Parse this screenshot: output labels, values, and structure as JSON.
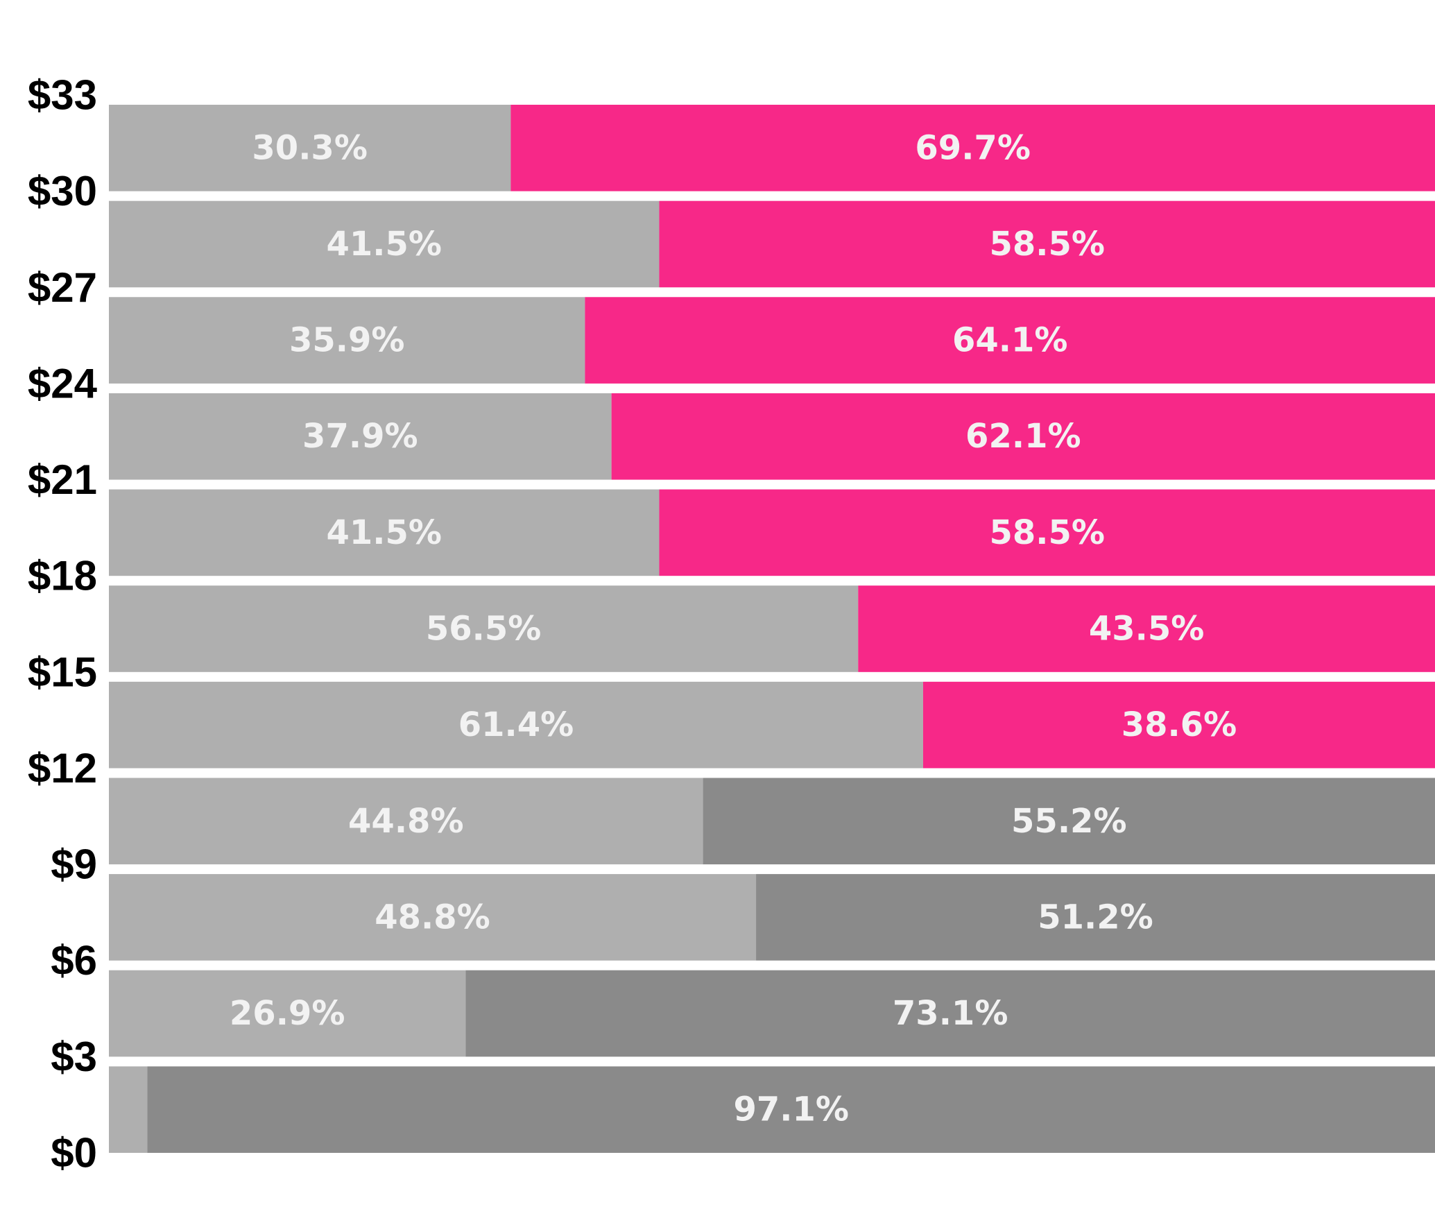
{
  "chart_data": {
    "type": "bar",
    "orientation": "horizontal",
    "stacked": true,
    "normalized_percent": true,
    "title": "",
    "xlabel": "",
    "ylabel": "",
    "y_ticks": [
      "$0",
      "$3",
      "$6",
      "$9",
      "$12",
      "$15",
      "$18",
      "$21",
      "$24",
      "$27",
      "$30",
      "$33"
    ],
    "grid": false,
    "legend": "none",
    "colors": {
      "left_segment": "#afafaf",
      "right_segment_low": "#8a8a8a",
      "right_segment_high": "#f72888"
    },
    "categories": [
      "$0-$3",
      "$3-$6",
      "$6-$9",
      "$9-$12",
      "$12-$15",
      "$15-$18",
      "$18-$21",
      "$21-$24",
      "$24-$27",
      "$27-$30",
      "$30-$33"
    ],
    "series": [
      {
        "values": [
          2.9,
          26.9,
          48.8,
          44.8,
          61.4,
          56.5,
          41.5,
          37.9,
          35.9,
          41.5,
          30.3
        ],
        "labels": [
          "",
          "26.9%",
          "48.8%",
          "44.8%",
          "61.4%",
          "56.5%",
          "41.5%",
          "37.9%",
          "35.9%",
          "41.5%",
          "30.3%"
        ]
      },
      {
        "values": [
          97.1,
          73.1,
          51.2,
          55.2,
          38.6,
          43.5,
          58.5,
          62.1,
          64.1,
          58.5,
          69.7
        ],
        "labels": [
          "97.1%",
          "73.1%",
          "51.2%",
          "55.2%",
          "38.6%",
          "43.5%",
          "58.5%",
          "62.1%",
          "64.1%",
          "58.5%",
          "69.7%"
        ],
        "segment_colors": [
          "#8a8a8a",
          "#8a8a8a",
          "#8a8a8a",
          "#8a8a8a",
          "#f72888",
          "#f72888",
          "#f72888",
          "#f72888",
          "#f72888",
          "#f72888",
          "#f72888"
        ]
      }
    ]
  }
}
